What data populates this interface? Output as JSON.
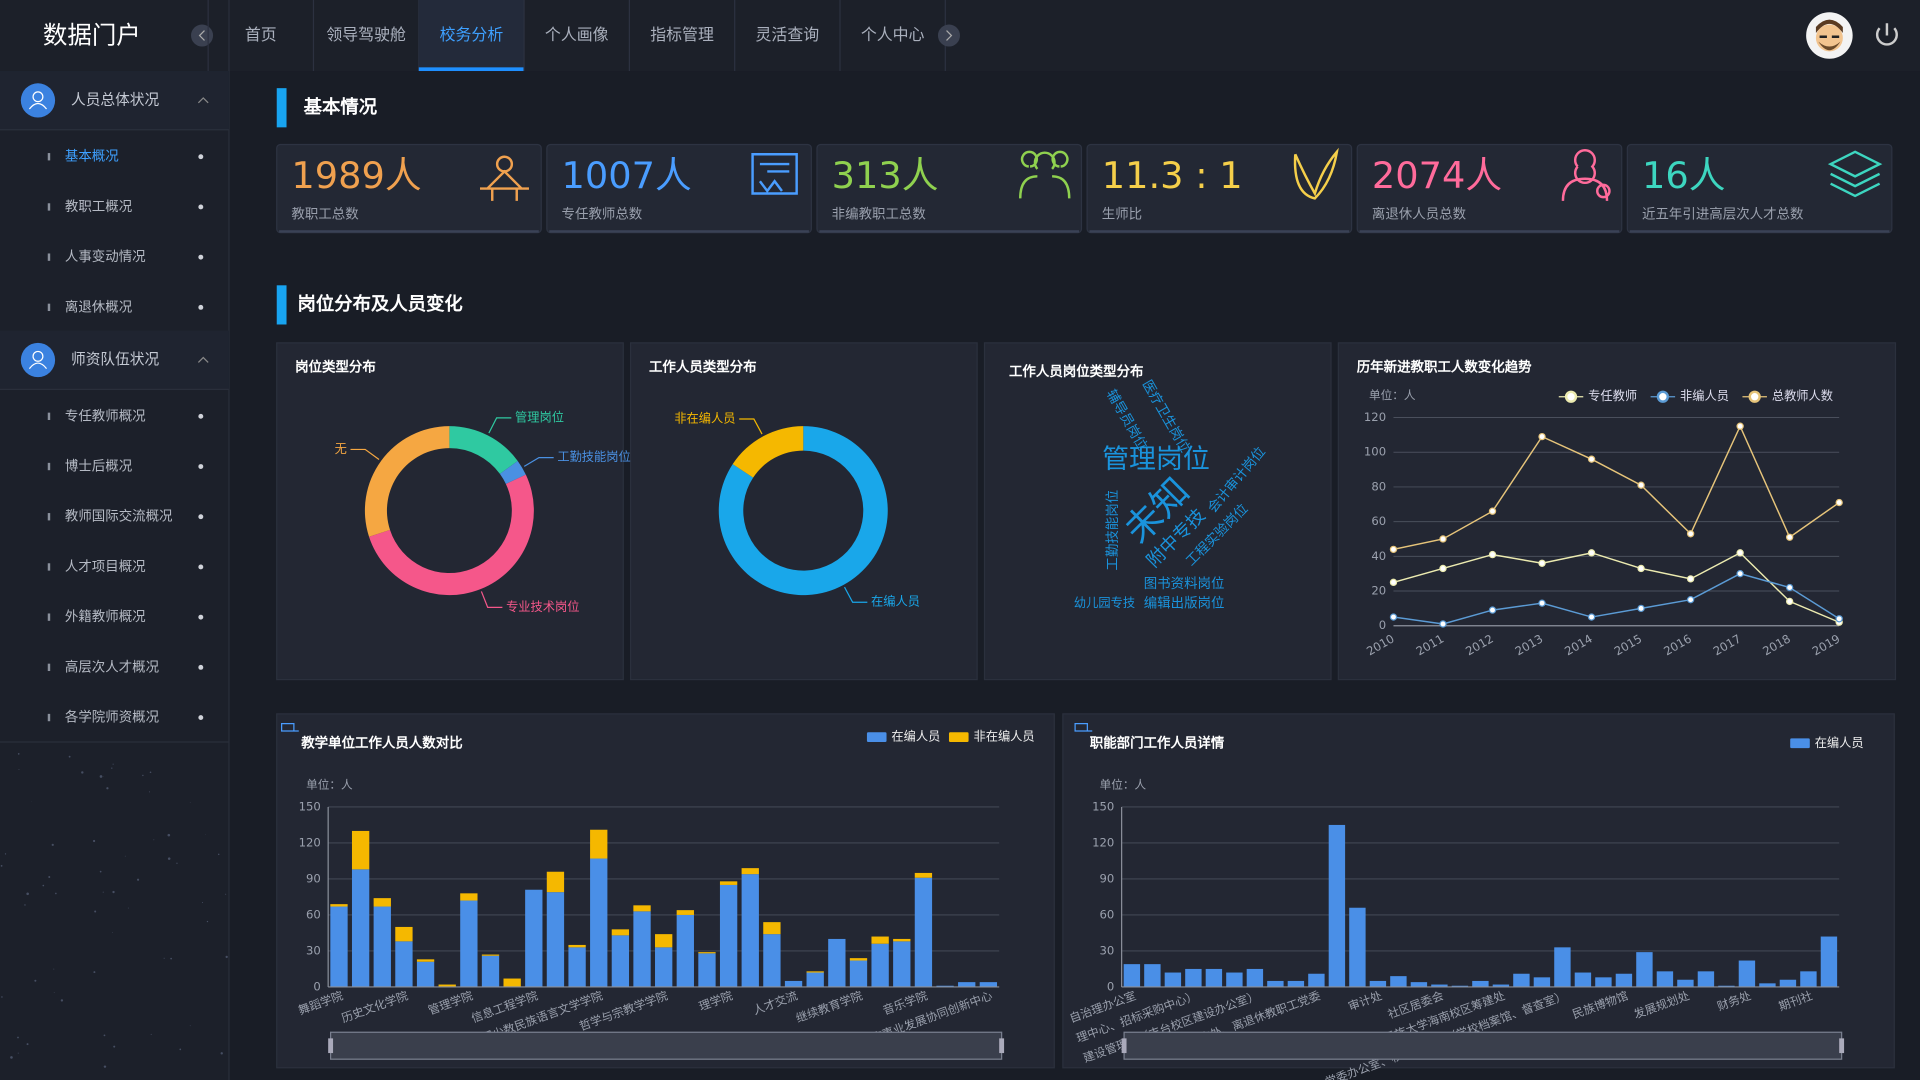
{
  "brand": "数据门户",
  "nav": {
    "items": [
      {
        "label": "首页"
      },
      {
        "label": "领导驾驶舱"
      },
      {
        "label": "校务分析",
        "active": true
      },
      {
        "label": "个人画像"
      },
      {
        "label": "指标管理"
      },
      {
        "label": "灵活查询"
      },
      {
        "label": "个人中心"
      }
    ]
  },
  "sidebar": [
    {
      "title": "人员总体状况",
      "items": [
        {
          "label": "基本概况",
          "active": true
        },
        {
          "label": "教职工概况"
        },
        {
          "label": "人事变动情况"
        },
        {
          "label": "离退休概况"
        }
      ]
    },
    {
      "title": "师资队伍状况",
      "items": [
        {
          "label": "专任教师概况"
        },
        {
          "label": "博士后概况"
        },
        {
          "label": "教师国际交流概况"
        },
        {
          "label": "人才项目概况"
        },
        {
          "label": "外籍教师概况"
        },
        {
          "label": "高层次人才概况"
        },
        {
          "label": "各学院师资概况"
        }
      ]
    }
  ],
  "sections": [
    "基本情况",
    "岗位分布及人员变化"
  ],
  "kpis": [
    {
      "value": "1989人",
      "label": "教职工总数",
      "color": "#f0a14f"
    },
    {
      "value": "1007人",
      "label": "专任教师总数",
      "color": "#4a9dff"
    },
    {
      "value": "313人",
      "label": "非编教职工总数",
      "color": "#8fd14f"
    },
    {
      "value": "11.3 : 1",
      "label": "生师比",
      "color": "#f5cf4a"
    },
    {
      "value": "2074人",
      "label": "离退休人员总数",
      "color": "#ff6b9b"
    },
    {
      "value": "16人",
      "label": "近五年引进高层次人才总数",
      "color": "#3dd6c0"
    }
  ],
  "chart_data": [
    {
      "type": "pie",
      "donut": true,
      "title": "岗位类型分布",
      "categories": [
        "管理岗位",
        "工勤技能岗位",
        "专业技术岗位",
        "无"
      ],
      "values": [
        15,
        3,
        52,
        30
      ],
      "colors": [
        "#2fc9a1",
        "#4a90e2",
        "#f5578a",
        "#f5a742"
      ]
    },
    {
      "type": "pie",
      "donut": true,
      "title": "工作人员类型分布",
      "categories": [
        "在编人员",
        "非在编人员"
      ],
      "values": [
        1676,
        313
      ],
      "colors": [
        "#19a7ea",
        "#f5b800"
      ]
    },
    {
      "type": "wordcloud",
      "title": "工作人员岗位类型分布",
      "words": [
        "辅导员岗位",
        "医疗卫生岗位",
        "管理岗位",
        "会计审计岗位",
        "未知",
        "工勤技能岗位",
        "附中专技",
        "工程实验岗位",
        "图书资料岗位",
        "幼儿园专技",
        "编辑出版岗位"
      ],
      "color": "#1a93dc"
    },
    {
      "type": "line",
      "title": "历年新进教职工人数变化趋势",
      "unit_label": "单位：人",
      "categories": [
        "2010",
        "2011",
        "2012",
        "2013",
        "2014",
        "2015",
        "2016",
        "2017",
        "2018",
        "2019"
      ],
      "series": [
        {
          "name": "专任教师",
          "color": "#ecebb0",
          "values": [
            25,
            33,
            41,
            36,
            42,
            33,
            27,
            42,
            14,
            2
          ]
        },
        {
          "name": "非编人员",
          "color": "#5b9bd5",
          "values": [
            5,
            1,
            9,
            13,
            5,
            10,
            15,
            30,
            22,
            4
          ]
        },
        {
          "name": "总教师人数",
          "color": "#e6c47a",
          "values": [
            44,
            50,
            66,
            109,
            96,
            81,
            53,
            115,
            51,
            71
          ]
        }
      ],
      "ylim": [
        0,
        120
      ],
      "yticks": [
        0,
        20,
        40,
        60,
        80,
        100,
        120
      ],
      "grid": true
    },
    {
      "type": "bar",
      "stacked": true,
      "title": "教学单位工作人员人数对比",
      "unit_label": "单位：人",
      "categories": [
        "舞蹈学院",
        null,
        null,
        "历史文化学院",
        null,
        null,
        "管理学院",
        null,
        null,
        "信息工程学院",
        null,
        null,
        "中国少数民族语言文学学院",
        null,
        null,
        "哲学与宗教学学院",
        null,
        null,
        "理学院",
        null,
        null,
        "人才交流",
        null,
        null,
        "继续教育学院",
        null,
        null,
        "音乐学院",
        null,
        null,
        "少数民族事业发展协同创新中心"
      ],
      "series": [
        {
          "name": "在编人员",
          "color": "#4a8fe7",
          "values": [
            67,
            98,
            67,
            38,
            21,
            0,
            72,
            26,
            0,
            81,
            79,
            33,
            107,
            43,
            63,
            33,
            60,
            28,
            85,
            94,
            44,
            5,
            12,
            40,
            22,
            36,
            38,
            91,
            1,
            4,
            4
          ]
        },
        {
          "name": "非在编人员",
          "color": "#f5b800",
          "values": [
            2,
            32,
            7,
            12,
            2,
            2,
            6,
            1,
            7,
            0,
            17,
            2,
            24,
            5,
            5,
            11,
            4,
            1,
            3,
            5,
            10,
            0,
            1,
            0,
            2,
            6,
            2,
            4,
            0,
            0,
            0
          ]
        }
      ],
      "ylim": [
        0,
        150
      ],
      "yticks": [
        0,
        30,
        60,
        90,
        120,
        150
      ],
      "grid": true
    },
    {
      "type": "bar",
      "title": "职能部门工作人员详情",
      "unit_label": "单位：人",
      "categories": [
        "自治理办公室",
        null,
        null,
        "理中心、招标采购中心）",
        null,
        null,
        "建设管理办（丰台校区建设办公室）",
        null,
        null,
        "离退休工作处、离退休教职工党委",
        null,
        null,
        "审计处",
        null,
        null,
        "社区居委会",
        null,
        null,
        "中央民族大学海南校区筹建处",
        null,
        null,
        "党委办公室、校长办公室（学校档案馆、督查室）",
        null,
        null,
        "民族博物馆",
        null,
        null,
        "发展规划处",
        null,
        null,
        "财务处",
        null,
        null,
        "期刊社",
        null
      ],
      "series": [
        {
          "name": "在编人员",
          "color": "#4a8fe7",
          "values": [
            19,
            19,
            12,
            15,
            15,
            12,
            15,
            5,
            5,
            11,
            135,
            66,
            5,
            9,
            4,
            2,
            1,
            5,
            2,
            11,
            8,
            33,
            12,
            8,
            11,
            29,
            13,
            6,
            13,
            1,
            22,
            3,
            6,
            13,
            42
          ]
        }
      ],
      "ylim": [
        0,
        150
      ],
      "yticks": [
        0,
        30,
        60,
        90,
        120,
        150
      ],
      "grid": true
    }
  ]
}
